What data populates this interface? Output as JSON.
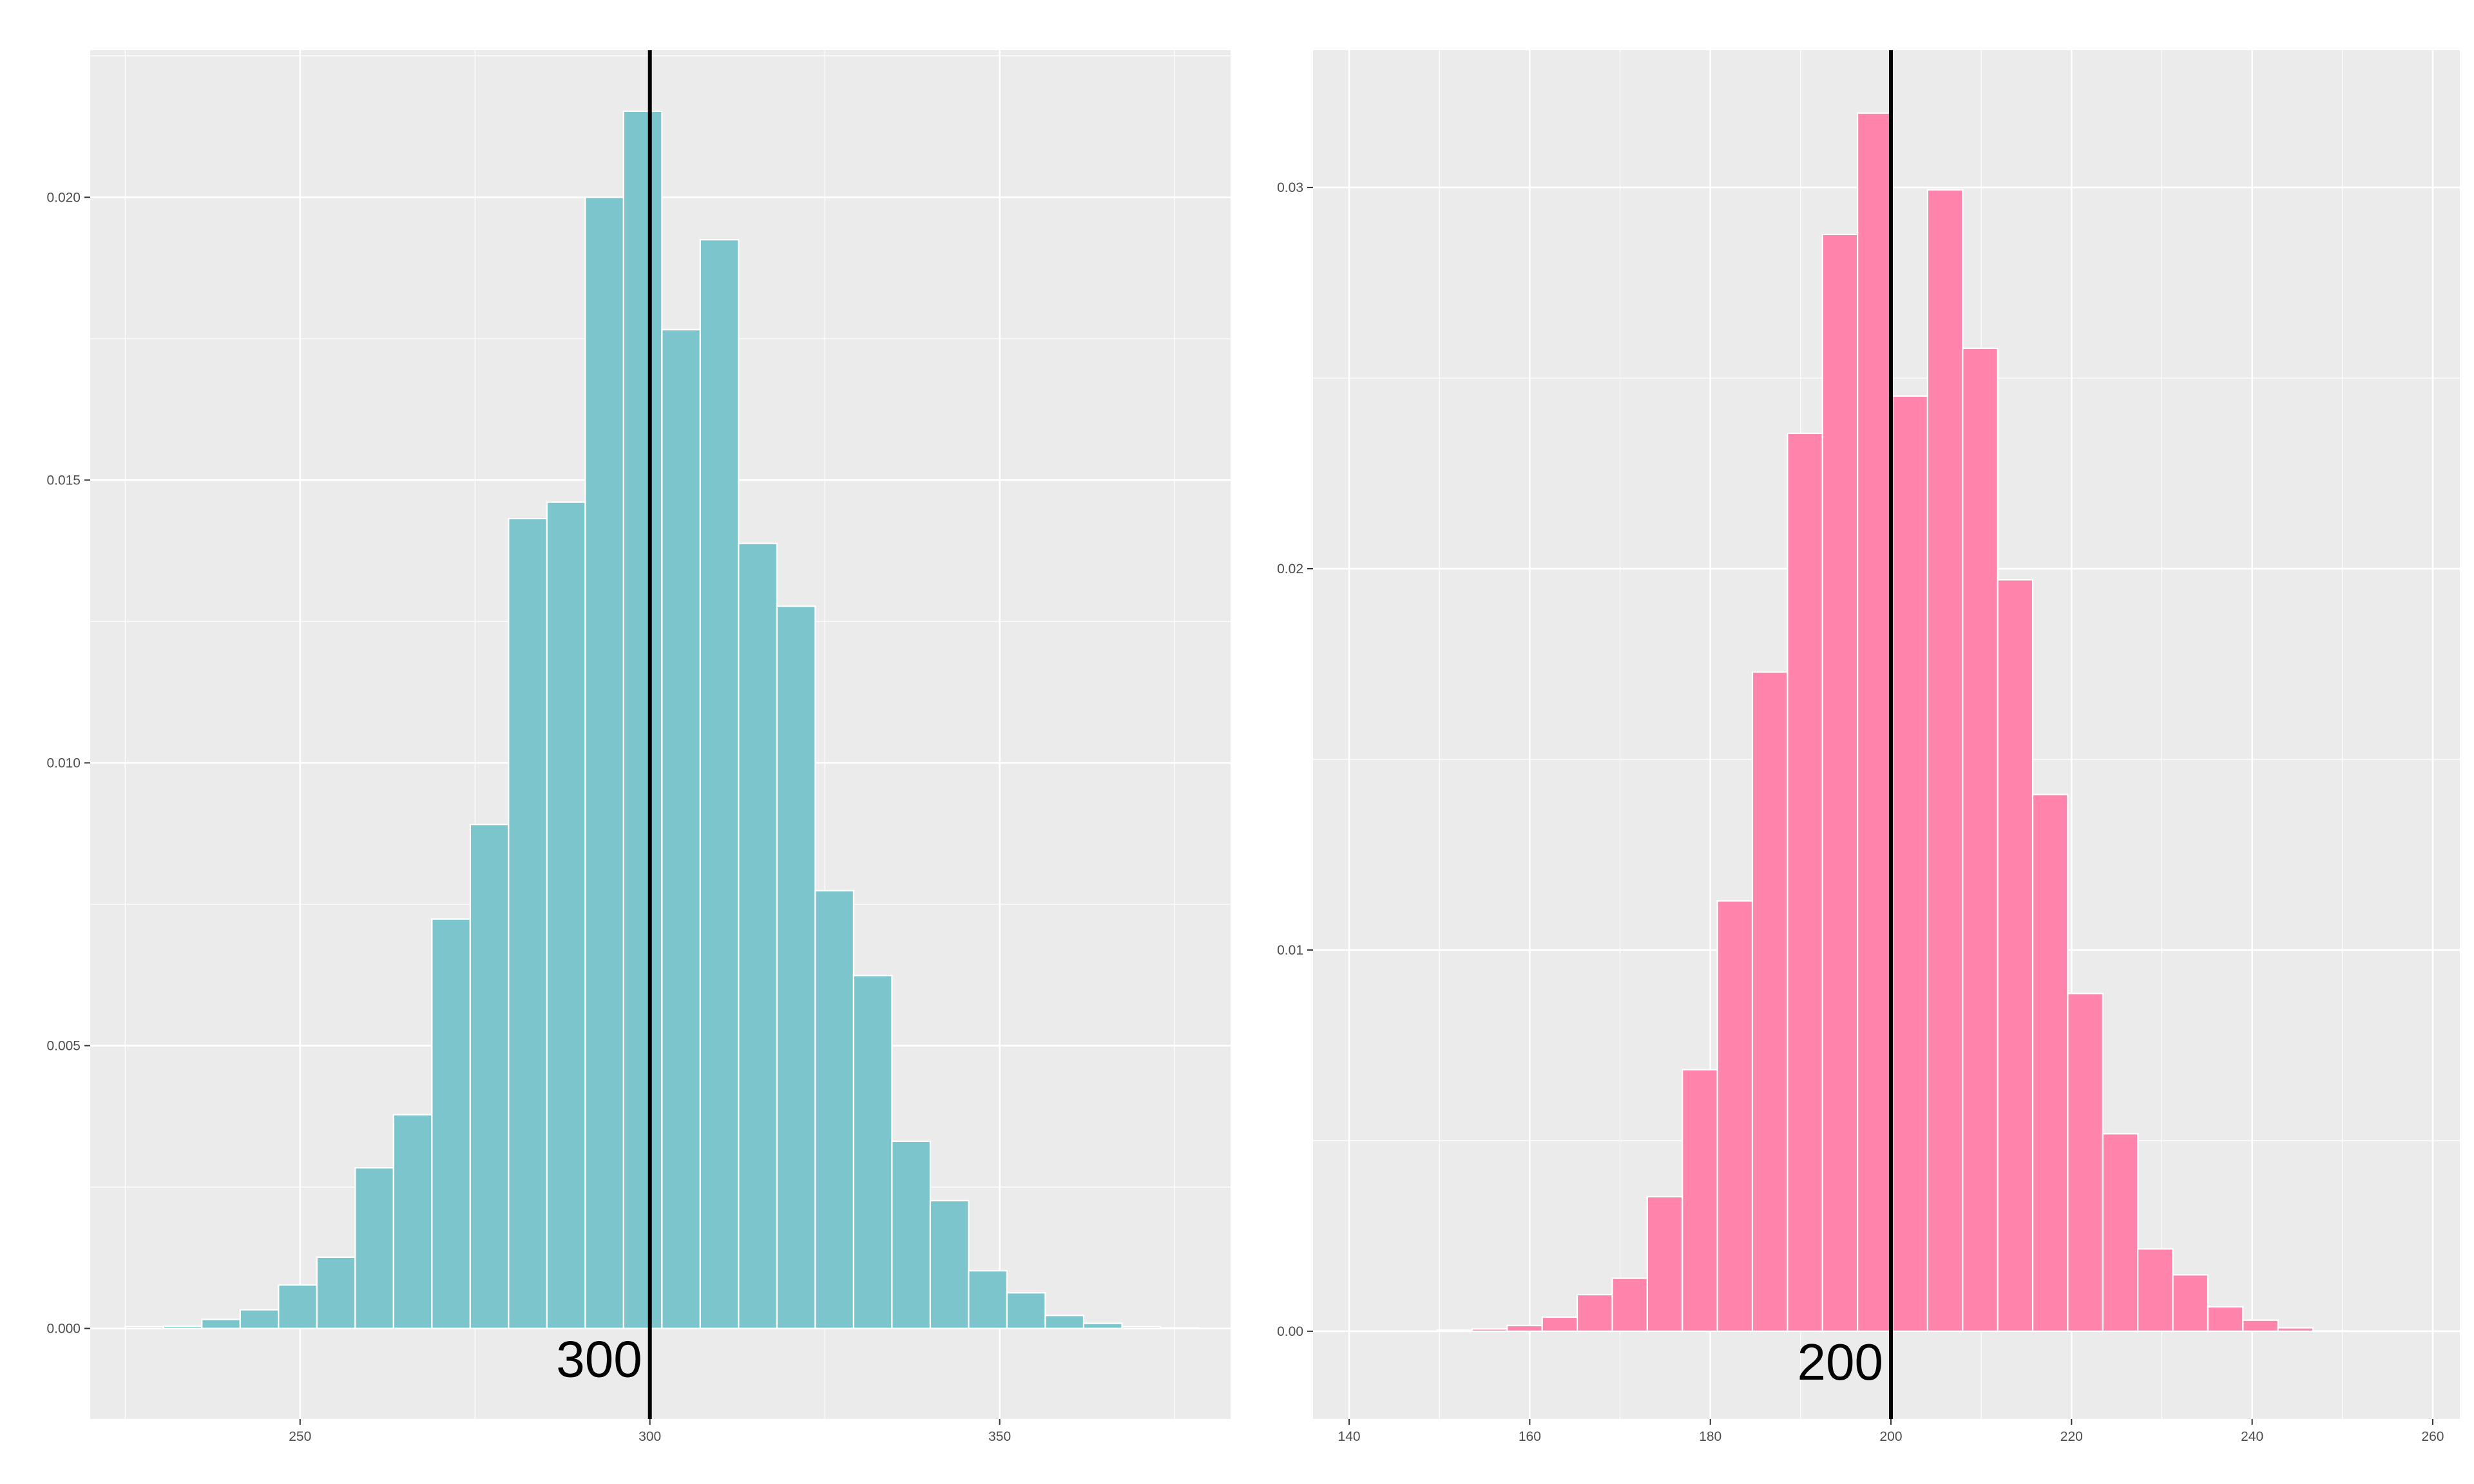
{
  "chart_data": [
    {
      "type": "bar",
      "title": "",
      "xlabel": "",
      "ylabel": "",
      "bar_color": "#7cc5cd",
      "bar_outline": "#ffffff",
      "panel_background": "#ebebeb",
      "grid": true,
      "xlim": [
        220,
        383
      ],
      "ylim": [
        -0.0016,
        0.0226
      ],
      "x_ticks": [
        250,
        300,
        350
      ],
      "x_tick_labels": [
        "250",
        "300",
        "350"
      ],
      "y_ticks": [
        0,
        0.005,
        0.01,
        0.015,
        0.02
      ],
      "y_tick_labels": [
        "0.000",
        "0.005",
        "0.010",
        "0.015",
        "0.020"
      ],
      "bin_width": 5.48,
      "bin_starts": [
        225.0,
        230.48,
        235.96,
        241.44,
        246.92,
        252.4,
        257.88,
        263.36,
        268.84,
        274.32,
        279.8,
        285.28,
        290.76,
        296.24,
        301.72,
        307.2,
        312.68,
        318.16,
        323.64,
        329.12,
        334.6,
        340.08,
        345.56,
        351.04,
        356.52,
        362.0,
        367.48,
        372.96
      ],
      "values": [
        3e-05,
        4e-05,
        0.00016,
        0.00033,
        0.00077,
        0.00126,
        0.00284,
        0.00378,
        0.00724,
        0.00891,
        0.01432,
        0.01461,
        0.02,
        0.02152,
        0.01766,
        0.01925,
        0.01388,
        0.01277,
        0.00774,
        0.00624,
        0.00331,
        0.00226,
        0.00102,
        0.00063,
        0.00023,
        9e-05,
        3e-05,
        1e-05
      ],
      "reference_line": {
        "x": 300,
        "label": "300",
        "color": "#000000"
      }
    },
    {
      "type": "bar",
      "title": "",
      "xlabel": "",
      "ylabel": "",
      "bar_color": "#ff84ac",
      "bar_outline": "#ffffff",
      "panel_background": "#ebebeb",
      "grid": true,
      "xlim": [
        136,
        263
      ],
      "ylim": [
        -0.0023,
        0.0336
      ],
      "x_ticks": [
        140,
        160,
        180,
        200,
        220,
        240,
        260
      ],
      "x_tick_labels": [
        "140",
        "160",
        "180",
        "200",
        "220",
        "240",
        "260"
      ],
      "y_ticks": [
        0,
        0.01,
        0.02,
        0.03
      ],
      "y_tick_labels": [
        "0.00",
        "0.01",
        "0.02",
        "0.03"
      ],
      "bin_width": 3.88,
      "bin_starts": [
        149.74,
        153.62,
        157.5,
        161.38,
        165.26,
        169.14,
        173.02,
        176.9,
        180.78,
        184.66,
        188.54,
        192.42,
        196.3,
        200.18,
        204.06,
        207.94,
        211.82,
        215.7,
        219.58,
        223.46,
        227.34,
        231.22,
        235.1,
        238.98,
        242.86,
        246.74
      ],
      "values": [
        3e-05,
        6e-05,
        0.00015,
        0.00037,
        0.00096,
        0.00139,
        0.00353,
        0.00686,
        0.01129,
        0.01729,
        0.02355,
        0.02877,
        0.03195,
        0.02453,
        0.02994,
        0.02578,
        0.01971,
        0.01408,
        0.00886,
        0.00518,
        0.00216,
        0.00148,
        0.00064,
        0.00029,
        9e-05,
        1e-05
      ],
      "reference_line": {
        "x": 200,
        "label": "200",
        "color": "#000000"
      }
    }
  ]
}
